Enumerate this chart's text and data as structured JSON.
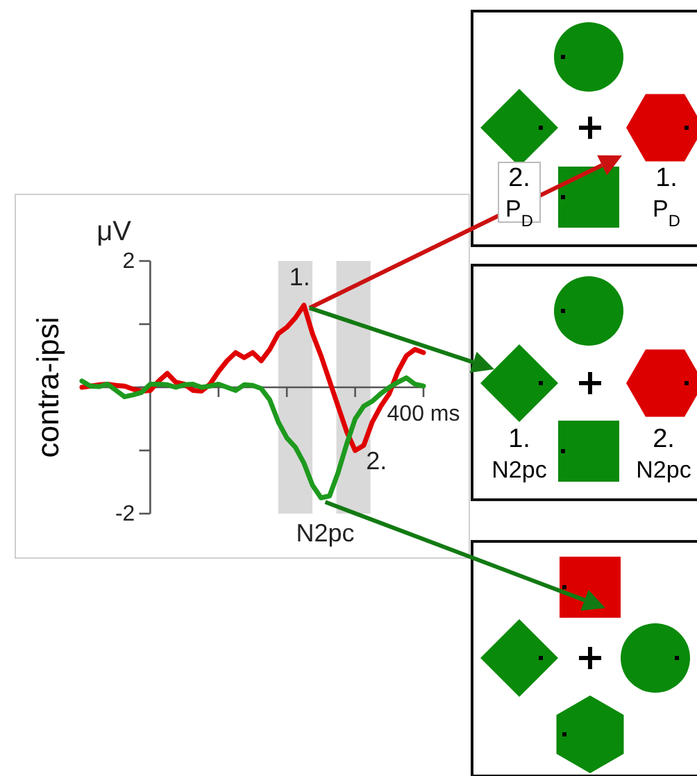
{
  "chart_data": {
    "type": "line",
    "ylabel": "contra-ipsi",
    "categories": [
      null,
      null,
      null,
      null,
      null,
      null,
      null,
      null,
      null,
      null,
      null,
      null,
      null,
      null,
      null,
      null,
      null,
      null,
      null,
      null,
      null,
      null,
      null,
      null,
      null,
      null,
      null,
      null,
      null,
      null,
      null,
      null,
      null,
      null,
      null,
      null,
      null,
      null,
      null,
      null,
      null
    ],
    "ylim": [
      -2,
      2
    ],
    "yticks": [
      2,
      -2
    ],
    "marker": "none",
    "line_style": "solid",
    "series": [
      {
        "color": "#e00000",
        "values": [
          0,
          0.02,
          0.04,
          0.05,
          0.03,
          0.02,
          -0.03,
          -0.06,
          -0.05,
          0.1,
          0.22,
          0.08,
          0.05,
          -0.05,
          -0.06,
          0.05,
          0.25,
          0.42,
          0.55,
          0.47,
          0.55,
          0.42,
          0.6,
          0.85,
          0.95,
          1.1,
          1.3,
          0.85,
          0.5,
          0.1,
          -0.3,
          -0.7,
          -1.0,
          -0.92,
          -0.55,
          -0.3,
          -0.1,
          0.25,
          0.5,
          0.6,
          0.55
        ]
      },
      {
        "color": "#1e9a1e",
        "values": [
          0.1,
          0.02,
          0.01,
          0.05,
          -0.05,
          -0.15,
          -0.12,
          -0.08,
          0.05,
          0.05,
          0.04,
          0.0,
          0.04,
          0.05,
          0.0,
          0.02,
          0.05,
          0.0,
          -0.05,
          0.04,
          0.03,
          -0.02,
          -0.2,
          -0.55,
          -0.8,
          -0.95,
          -1.2,
          -1.55,
          -1.75,
          -1.72,
          -1.35,
          -0.9,
          -0.5,
          -0.3,
          -0.22,
          -0.1,
          0.0,
          0.08,
          0.15,
          0.05,
          0.02
        ]
      }
    ],
    "annotations": [
      "μV",
      "400 ms",
      "1.",
      "2.",
      "N2pc",
      "2. P$_{D}$",
      "1. P$_{D}$",
      "1. N2pc",
      "2. N2pc"
    ]
  }
}
